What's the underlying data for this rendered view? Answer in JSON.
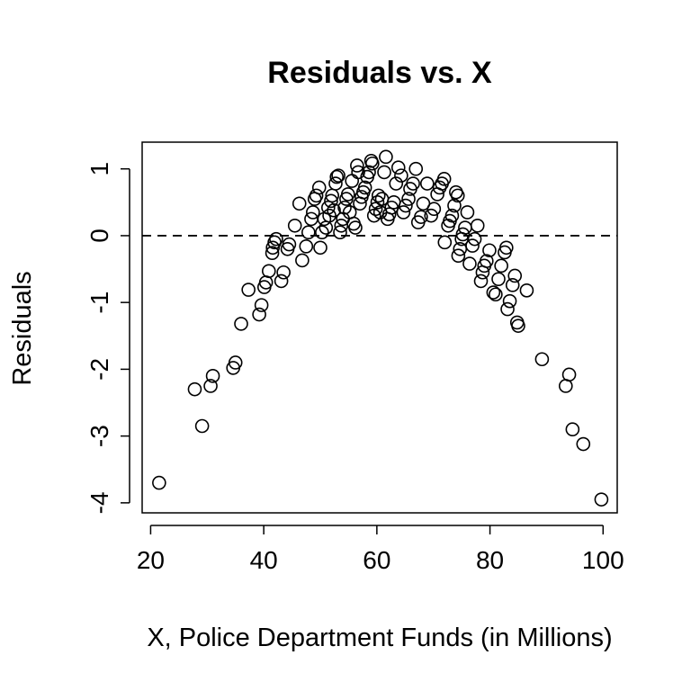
{
  "chart_data": {
    "type": "scatter",
    "title": "Residuals vs. X",
    "xlabel": "X, Police Department Funds (in Millions)",
    "ylabel": "Residuals",
    "xlim": [
      18.5,
      102.5
    ],
    "ylim": [
      -4.15,
      1.4
    ],
    "xticks": [
      20,
      40,
      60,
      80,
      100
    ],
    "yticks": [
      -4,
      -3,
      -2,
      -1,
      0,
      1
    ],
    "reference_line": {
      "y": 0,
      "style": "dashed"
    },
    "marker": "open-circle",
    "grid": false,
    "series": [
      {
        "name": "Residuals",
        "points": [
          [
            21.5,
            -3.7
          ],
          [
            27.8,
            -2.3
          ],
          [
            29.1,
            -2.85
          ],
          [
            30.6,
            -2.25
          ],
          [
            31.0,
            -2.1
          ],
          [
            34.6,
            -1.98
          ],
          [
            35.0,
            -1.9
          ],
          [
            36.0,
            -1.32
          ],
          [
            37.3,
            -0.81
          ],
          [
            39.2,
            -1.18
          ],
          [
            39.6,
            -1.04
          ],
          [
            40.1,
            -0.77
          ],
          [
            40.4,
            -0.7
          ],
          [
            40.9,
            -0.53
          ],
          [
            41.5,
            -0.26
          ],
          [
            41.6,
            -0.18
          ],
          [
            41.9,
            -0.1
          ],
          [
            42.2,
            -0.05
          ],
          [
            43.1,
            -0.68
          ],
          [
            43.5,
            -0.55
          ],
          [
            44.2,
            -0.2
          ],
          [
            44.5,
            -0.13
          ],
          [
            45.5,
            0.15
          ],
          [
            46.3,
            0.48
          ],
          [
            46.8,
            -0.37
          ],
          [
            47.5,
            -0.16
          ],
          [
            47.9,
            0.05
          ],
          [
            48.4,
            0.25
          ],
          [
            48.7,
            0.35
          ],
          [
            49.0,
            0.55
          ],
          [
            49.3,
            0.6
          ],
          [
            49.8,
            0.72
          ],
          [
            50.0,
            -0.18
          ],
          [
            50.3,
            0.05
          ],
          [
            50.7,
            0.25
          ],
          [
            51.0,
            0.12
          ],
          [
            51.4,
            0.42
          ],
          [
            51.6,
            0.3
          ],
          [
            51.9,
            0.52
          ],
          [
            52.1,
            0.6
          ],
          [
            52.4,
            0.38
          ],
          [
            52.7,
            0.78
          ],
          [
            52.9,
            0.88
          ],
          [
            53.2,
            0.9
          ],
          [
            53.5,
            0.05
          ],
          [
            53.7,
            0.15
          ],
          [
            54.0,
            0.25
          ],
          [
            54.3,
            0.42
          ],
          [
            54.6,
            0.55
          ],
          [
            54.9,
            0.62
          ],
          [
            55.2,
            0.35
          ],
          [
            55.6,
            0.82
          ],
          [
            55.9,
            0.18
          ],
          [
            56.2,
            0.12
          ],
          [
            56.5,
            1.05
          ],
          [
            56.7,
            0.95
          ],
          [
            57.0,
            0.48
          ],
          [
            57.3,
            0.58
          ],
          [
            57.6,
            0.65
          ],
          [
            57.9,
            0.72
          ],
          [
            58.3,
            0.88
          ],
          [
            58.6,
            0.95
          ],
          [
            59.0,
            1.12
          ],
          [
            59.2,
            1.08
          ],
          [
            59.5,
            0.3
          ],
          [
            59.8,
            0.4
          ],
          [
            60.1,
            0.5
          ],
          [
            60.3,
            0.6
          ],
          [
            60.6,
            0.35
          ],
          [
            60.9,
            0.55
          ],
          [
            61.3,
            0.95
          ],
          [
            61.6,
            1.18
          ],
          [
            61.9,
            0.25
          ],
          [
            62.2,
            0.32
          ],
          [
            62.6,
            0.42
          ],
          [
            63.0,
            0.5
          ],
          [
            63.4,
            0.78
          ],
          [
            63.8,
            1.02
          ],
          [
            64.3,
            0.9
          ],
          [
            64.7,
            0.35
          ],
          [
            65.1,
            0.45
          ],
          [
            65.6,
            0.55
          ],
          [
            65.9,
            0.7
          ],
          [
            66.4,
            0.78
          ],
          [
            66.9,
            1.0
          ],
          [
            67.3,
            0.2
          ],
          [
            67.8,
            0.28
          ],
          [
            68.2,
            0.48
          ],
          [
            68.9,
            0.78
          ],
          [
            69.6,
            0.3
          ],
          [
            70.1,
            0.4
          ],
          [
            70.7,
            0.62
          ],
          [
            71.1,
            0.72
          ],
          [
            71.5,
            0.78
          ],
          [
            71.9,
            0.85
          ],
          [
            72.0,
            -0.1
          ],
          [
            72.6,
            0.15
          ],
          [
            72.9,
            0.22
          ],
          [
            73.3,
            0.3
          ],
          [
            73.7,
            0.45
          ],
          [
            74.0,
            0.65
          ],
          [
            74.3,
            0.6
          ],
          [
            74.4,
            -0.3
          ],
          [
            74.7,
            -0.2
          ],
          [
            75.0,
            -0.05
          ],
          [
            75.2,
            0.02
          ],
          [
            75.6,
            0.12
          ],
          [
            76.0,
            0.35
          ],
          [
            76.4,
            -0.42
          ],
          [
            76.9,
            -0.15
          ],
          [
            77.3,
            -0.05
          ],
          [
            77.8,
            0.15
          ],
          [
            78.4,
            -0.68
          ],
          [
            78.7,
            -0.55
          ],
          [
            79.0,
            -0.45
          ],
          [
            79.4,
            -0.38
          ],
          [
            79.9,
            -0.22
          ],
          [
            80.6,
            -0.85
          ],
          [
            81.0,
            -0.88
          ],
          [
            81.5,
            -0.65
          ],
          [
            82.0,
            -0.45
          ],
          [
            82.6,
            -0.25
          ],
          [
            82.9,
            -0.18
          ],
          [
            83.1,
            -1.1
          ],
          [
            83.5,
            -0.98
          ],
          [
            84.0,
            -0.74
          ],
          [
            84.4,
            -0.6
          ],
          [
            84.8,
            -1.3
          ],
          [
            85.0,
            -1.35
          ],
          [
            86.5,
            -0.82
          ],
          [
            89.2,
            -1.85
          ],
          [
            93.4,
            -2.25
          ],
          [
            94.0,
            -2.08
          ],
          [
            94.6,
            -2.9
          ],
          [
            96.5,
            -3.12
          ],
          [
            99.7,
            -3.95
          ]
        ]
      }
    ]
  }
}
